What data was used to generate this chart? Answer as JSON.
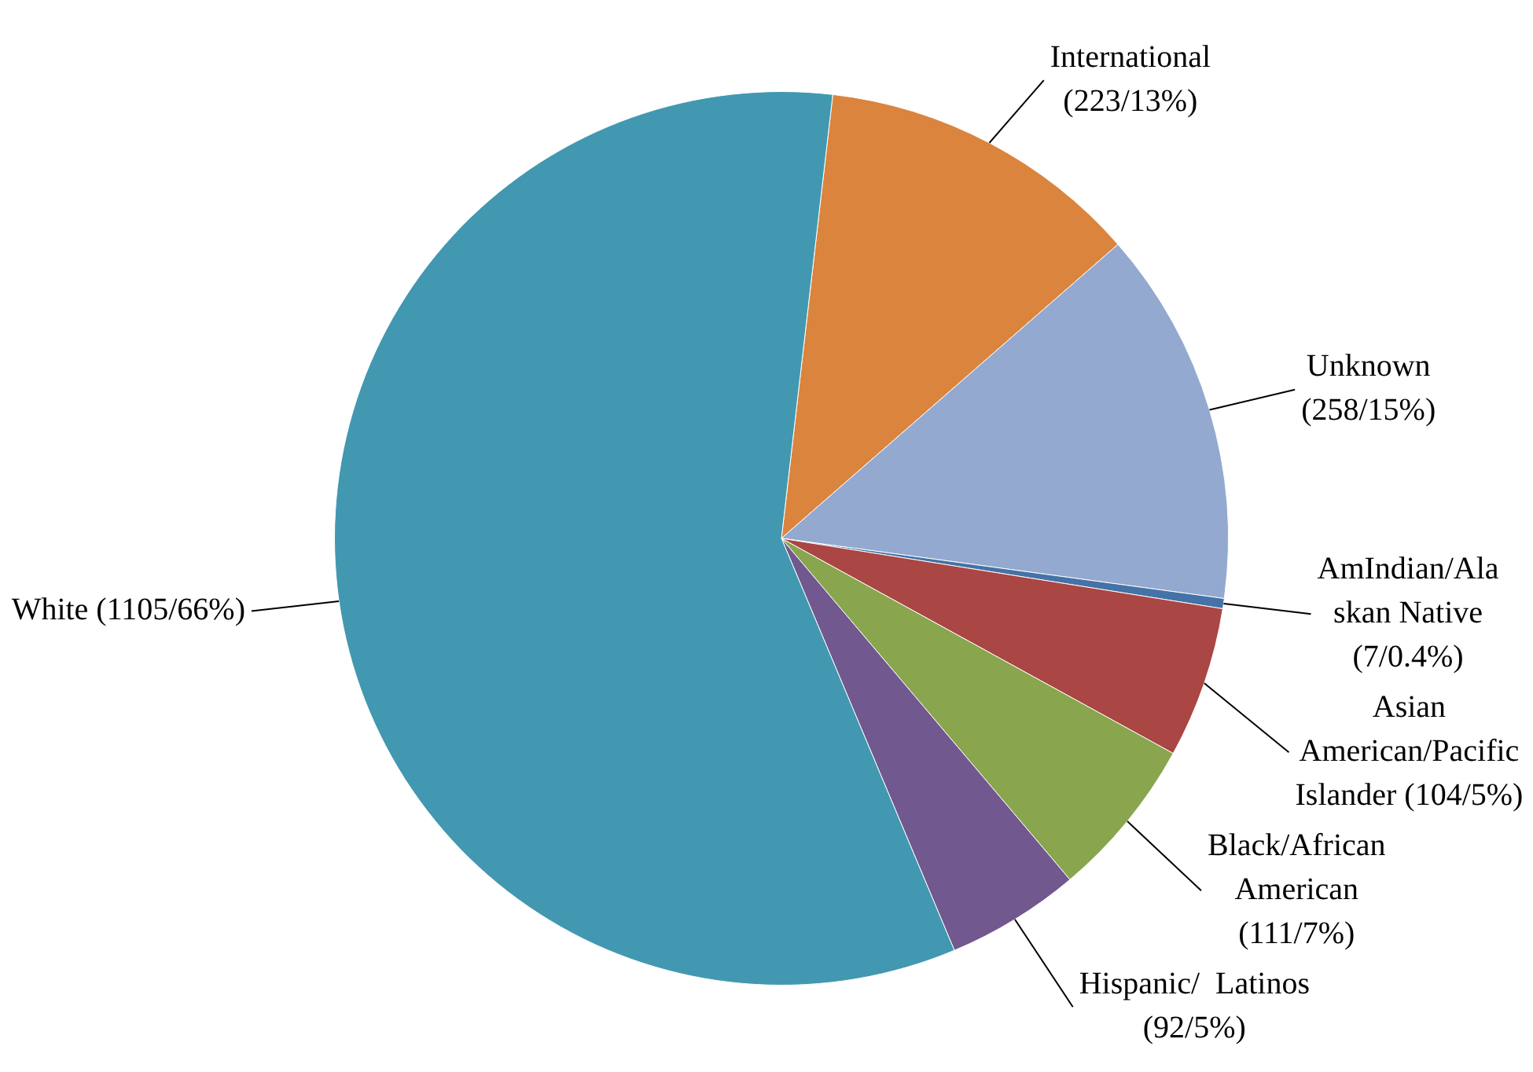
{
  "chart_data": {
    "type": "pie",
    "categories": [
      "International\n(223/13%)",
      "Unknown\n(258/15%)",
      "AmIndian/Ala\nskan Native\n(7/0.4%)",
      "Asian\nAmerican/Pacific\nIslander (104/5%)",
      "Black/African\nAmerican\n(111/7%)",
      "Hispanic/  Latinos\n(92/5%)",
      "White (1105/66%)"
    ],
    "values": [
      223,
      258,
      7,
      104,
      111,
      92,
      1105
    ],
    "colors": [
      "#db843d",
      "#93a9cf",
      "#4572a7",
      "#aa4643",
      "#89a54e",
      "#71588f",
      "#4298b0"
    ],
    "legend": false
  }
}
